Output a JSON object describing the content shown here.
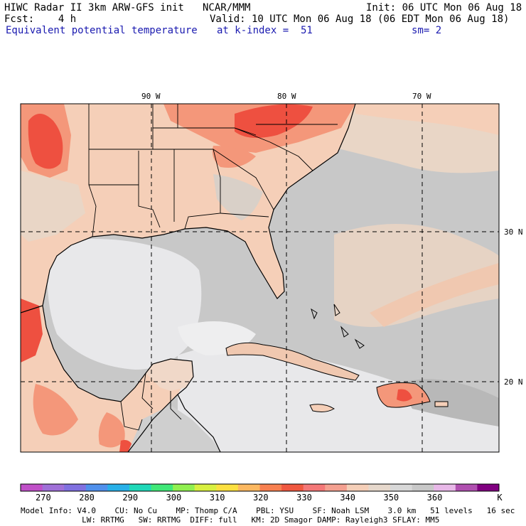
{
  "header": {
    "title": "HIWC Radar II 3km ARW-GFS init",
    "org": "NCAR/MMM",
    "init": "Init: 06 UTC Mon 06 Aug 18",
    "fcst": "Fcst:    4 h",
    "valid": "Valid: 10 UTC Mon 06 Aug 18 (06 EDT Mon 06 Aug 18)",
    "field": "Equivalent potential temperature",
    "level": "at k-index =  51",
    "smooth": "sm= 2"
  },
  "map": {
    "lon_labels": [
      "90 W",
      "80 W",
      "70 W"
    ],
    "lat_labels": [
      "30 N",
      "20 N"
    ],
    "colors": {
      "land_warm": "#f5cfb8",
      "land_hot": "#f4977a",
      "very_hot": "#ee5040",
      "ocean_mid": "#c8c8c8",
      "ocean_light": "#e8e8ea",
      "ocean_dark": "#b4b4b4",
      "coast": "#000000"
    }
  },
  "colorbar": {
    "colors": [
      "#c050c8",
      "#a070d8",
      "#8070e0",
      "#5090ec",
      "#28b0e8",
      "#20d8b8",
      "#40e878",
      "#90f050",
      "#d8f040",
      "#fce040",
      "#fcb860",
      "#f88050",
      "#f05840",
      "#f47878",
      "#f4a090",
      "#f5cfb8",
      "#e6d8cc",
      "#d8d8d8",
      "#c8c8c8",
      "#e8b8e8",
      "#b050b0",
      "#800080"
    ],
    "ticks": [
      "270",
      "280",
      "290",
      "300",
      "310",
      "320",
      "330",
      "340",
      "350",
      "360"
    ],
    "unit": "K"
  },
  "footer": {
    "line1": "Model Info: V4.0    CU: No Cu    MP: Thomp C/A    PBL: YSU    SF: Noah LSM    3.0 km   51 levels   16 sec",
    "line2": "             LW: RRTMG   SW: RRTMG  DIFF: full   KM: 2D Smagor DAMP: Rayleigh3 SFLAY: MM5"
  }
}
